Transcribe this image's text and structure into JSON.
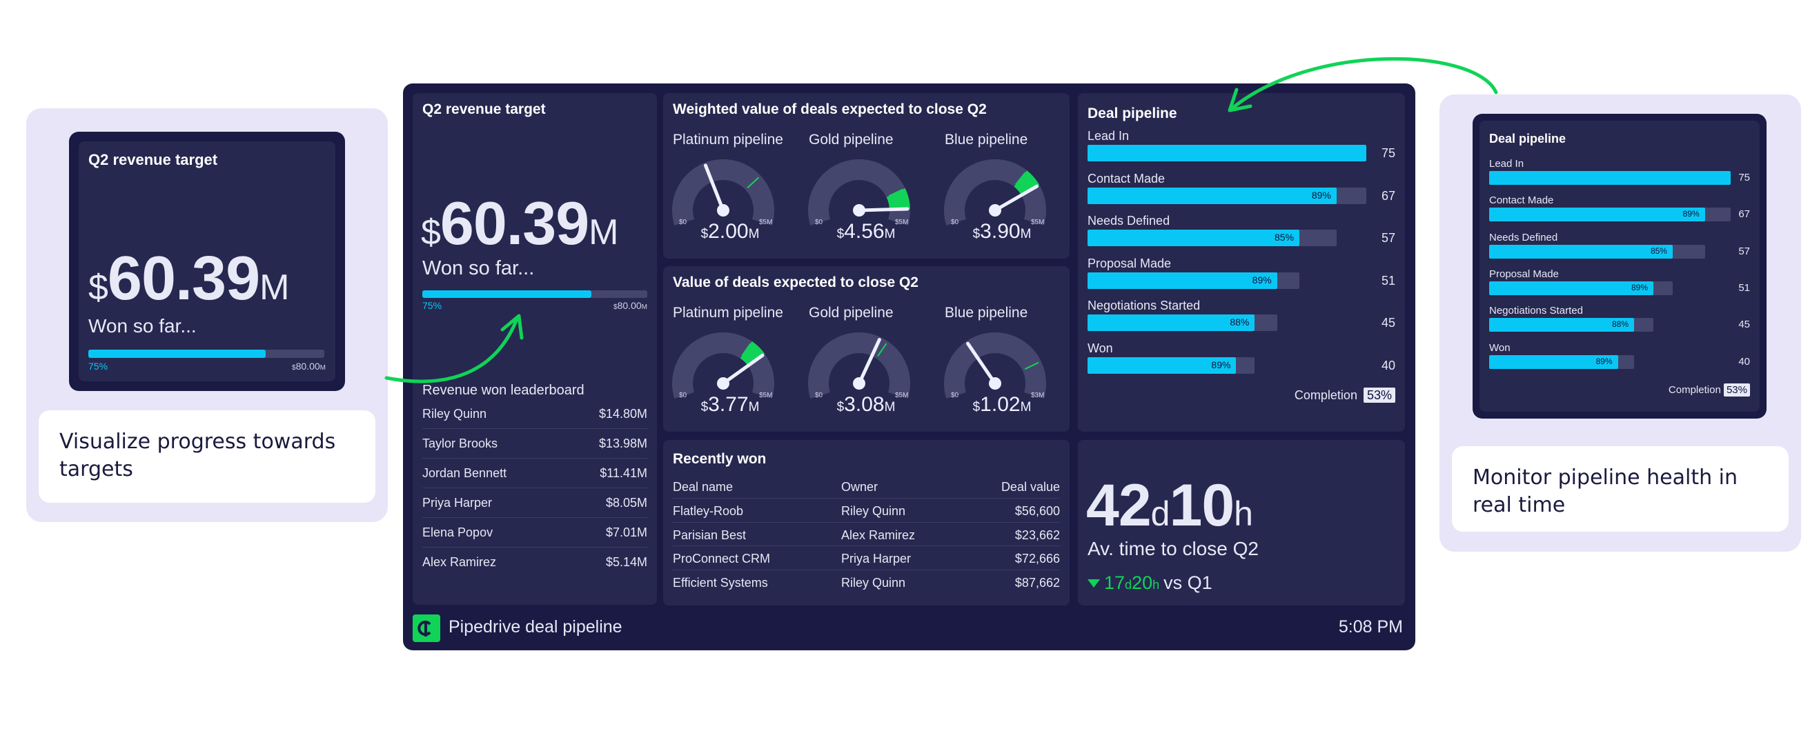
{
  "colors": {
    "accent": "#09c7f4",
    "green": "#11d357",
    "panel": "#26284f",
    "frame": "#1a1a45",
    "callout": "#e7e5f7"
  },
  "callouts": {
    "left_caption": "Visualize progress towards targets",
    "right_caption": "Monitor pipeline health in real time",
    "arrow_icon": "green-curved-arrow"
  },
  "revenue_target": {
    "title": "Q2 revenue target",
    "currency": "$",
    "amount": "60.39",
    "unit": "M",
    "subtitle": "Won so far...",
    "progress": 0.75,
    "progress_label": "75%",
    "target_currency": "$",
    "target_value": "80.00",
    "target_unit": "M"
  },
  "leaderboard": {
    "title": "Revenue won leaderboard",
    "rows": [
      {
        "name": "Riley Quinn",
        "value": "$14.80M"
      },
      {
        "name": "Taylor Brooks",
        "value": "$13.98M"
      },
      {
        "name": "Jordan Bennett",
        "value": "$11.41M"
      },
      {
        "name": "Priya Harper",
        "value": "$8.05M"
      },
      {
        "name": "Elena Popov",
        "value": "$7.01M"
      },
      {
        "name": "Alex Ramirez",
        "value": "$5.14M"
      }
    ]
  },
  "weighted": {
    "title": "Weighted value of deals expected to close Q2",
    "gauges": [
      {
        "label": "Platinum pipeline",
        "cur": "$",
        "value": "2.00",
        "unit": "M",
        "amount": 2.0,
        "target": 3.6,
        "min_cur": "$",
        "min_label": "0",
        "max_cur": "$",
        "max_label": "5",
        "max_unit": "M",
        "max": 5
      },
      {
        "label": "Gold pipeline",
        "cur": "$",
        "value": "4.56",
        "unit": "M",
        "amount": 4.56,
        "target": 4.0,
        "min_cur": "$",
        "min_label": "0",
        "max_cur": "$",
        "max_label": "5",
        "max_unit": "M",
        "max": 5
      },
      {
        "label": "Blue pipeline",
        "cur": "$",
        "value": "3.90",
        "unit": "M",
        "amount": 3.9,
        "target": 3.4,
        "min_cur": "$",
        "min_label": "0",
        "max_cur": "$",
        "max_label": "5",
        "max_unit": "M",
        "max": 5
      }
    ]
  },
  "expected": {
    "title": "Value of deals expected to close Q2",
    "gauges": [
      {
        "label": "Platinum pipeline",
        "cur": "$",
        "value": "3.77",
        "unit": "M",
        "amount": 3.77,
        "target": 3.3,
        "min_cur": "$",
        "min_label": "0",
        "max_cur": "$",
        "max_label": "5",
        "max_unit": "M",
        "max": 5
      },
      {
        "label": "Gold pipeline",
        "cur": "$",
        "value": "3.08",
        "unit": "M",
        "amount": 3.08,
        "target": 3.3,
        "min_cur": "$",
        "min_label": "0",
        "max_cur": "$",
        "max_label": "5",
        "max_unit": "M",
        "max": 5
      },
      {
        "label": "Blue pipeline",
        "cur": "$",
        "value": "1.02",
        "unit": "M",
        "amount": 1.02,
        "target": 2.4,
        "min_cur": "$",
        "min_label": "0",
        "max_cur": "$",
        "max_label": "3",
        "max_unit": "M",
        "max": 3
      }
    ]
  },
  "pipeline": {
    "title": "Deal pipeline",
    "max": 75,
    "stages": [
      {
        "label": "Lead In",
        "value": 75,
        "pct": ""
      },
      {
        "label": "Contact Made",
        "value": 67,
        "pct": "89%"
      },
      {
        "label": "Needs Defined",
        "value": 57,
        "pct": "85%"
      },
      {
        "label": "Proposal Made",
        "value": 51,
        "pct": "89%"
      },
      {
        "label": "Negotiations Started",
        "value": 45,
        "pct": "88%"
      },
      {
        "label": "Won",
        "value": 40,
        "pct": "89%"
      }
    ],
    "completion_label": "Completion",
    "completion_value": "53%"
  },
  "recently_won": {
    "title": "Recently won",
    "columns": [
      "Deal name",
      "Owner",
      "Deal value"
    ],
    "rows": [
      [
        "Flatley-Roob",
        "Riley Quinn",
        "$56,600"
      ],
      [
        "Parisian Best",
        "Alex Ramirez",
        "$23,662"
      ],
      [
        "ProConnect CRM",
        "Priya Harper",
        "$72,666"
      ],
      [
        "Efficient Systems",
        "Riley Quinn",
        "$87,662"
      ]
    ]
  },
  "close_time": {
    "days": "42",
    "d_unit": "d",
    "hours": "10",
    "h_unit": "h",
    "label": "Av. time to close Q2",
    "delta_days": "17",
    "delta_d_unit": "d",
    "delta_hours": "20",
    "delta_h_unit": "h",
    "delta_suffix": "vs Q1"
  },
  "footer": {
    "title": "Pipedrive deal pipeline",
    "time": "5:08 PM",
    "logo_icon": "pipedrive-logo-icon"
  }
}
